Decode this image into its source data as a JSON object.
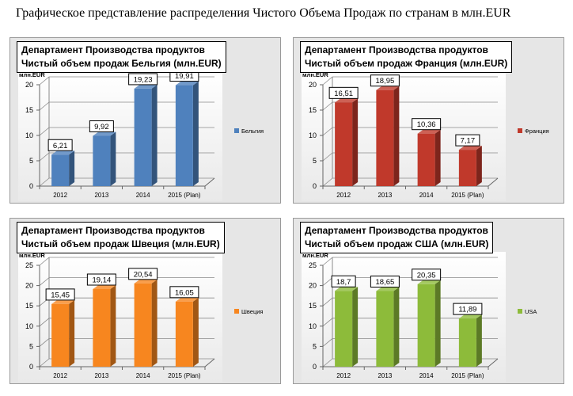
{
  "page_title": "Графическое представление распределения Чистого Объема Продаж по странам в млн.EUR",
  "chart_data": [
    {
      "type": "bar",
      "title_line1": "Департамент Производства продуктов",
      "title_line2": "Чистый объем продаж Бельгия (млн.EUR)",
      "ylabel": "млн.EUR",
      "categories": [
        "2012",
        "2013",
        "2014",
        "2015 (Plan)"
      ],
      "series": [
        {
          "name": "Бельгия",
          "values": [
            6.21,
            9.92,
            19.23,
            19.91
          ],
          "labels": [
            "6,21",
            "9,92",
            "19,23",
            "19,91"
          ]
        }
      ],
      "ylim": [
        0,
        20
      ],
      "yticks": [
        0,
        5,
        10,
        15,
        20
      ],
      "color": "#4f81bd",
      "legend": "right",
      "grid": true
    },
    {
      "type": "bar",
      "title_line1": "Департамент Производства продуктов",
      "title_line2": "Чистый  объем продаж Франция  (млн.EUR)",
      "ylabel": "млн.EUR",
      "categories": [
        "2012",
        "2013",
        "2014",
        "2015 (Plan)"
      ],
      "series": [
        {
          "name": "Франция",
          "values": [
            16.51,
            18.95,
            10.36,
            7.17
          ],
          "labels": [
            "16,51",
            "18,95",
            "10,36",
            "7,17"
          ]
        }
      ],
      "ylim": [
        0,
        20
      ],
      "yticks": [
        0,
        5,
        10,
        15,
        20
      ],
      "color": "#c0392b",
      "legend": "right",
      "grid": true
    },
    {
      "type": "bar",
      "title_line1": "Департамент Производства продуктов",
      "title_line2": "Чистый  объем продаж Швеция  (млн.EUR)",
      "ylabel": "млн.EUR",
      "categories": [
        "2012",
        "2013",
        "2014",
        "2015 (Plan)"
      ],
      "series": [
        {
          "name": "Швеция",
          "values": [
            15.45,
            19.14,
            20.54,
            16.05
          ],
          "labels": [
            "15,45",
            "19,14",
            "20,54",
            "16,05"
          ]
        }
      ],
      "ylim": [
        0,
        25
      ],
      "yticks": [
        0,
        5,
        10,
        15,
        20,
        25
      ],
      "color": "#f7861f",
      "legend": "right",
      "grid": true
    },
    {
      "type": "bar",
      "title_line1": "Департамент Производства продуктов",
      "title_line2": "Чистый  объем продаж США (млн.EUR)",
      "ylabel": "млн.EUR",
      "categories": [
        "2012",
        "2013",
        "2014",
        "2015 (Plan)"
      ],
      "series": [
        {
          "name": "USA",
          "values": [
            18.7,
            18.65,
            20.35,
            11.89
          ],
          "labels": [
            "18,7",
            "18,65",
            "20,35",
            "11,89"
          ]
        }
      ],
      "ylim": [
        0,
        25
      ],
      "yticks": [
        0,
        5,
        10,
        15,
        20,
        25
      ],
      "color": "#8dbb3a",
      "legend": "right",
      "grid": true
    }
  ]
}
